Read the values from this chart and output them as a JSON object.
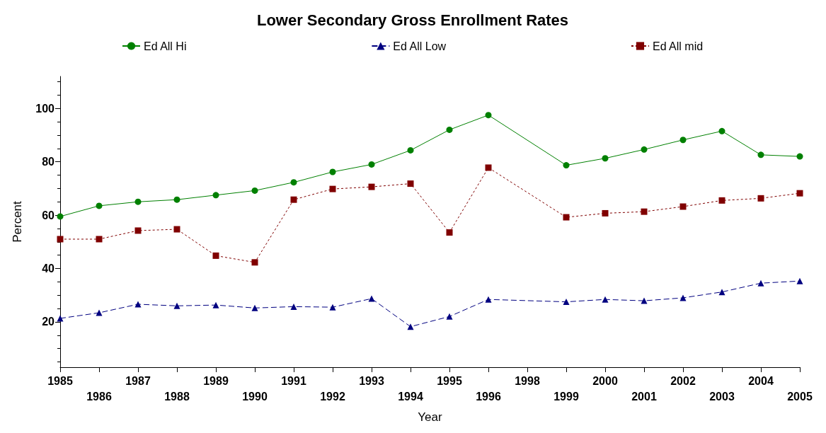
{
  "chart_data": {
    "type": "line",
    "title": "Lower Secondary Gross Enrollment Rates",
    "xlabel": "Year",
    "ylabel": "Percent",
    "categories": [
      "1985",
      "1986",
      "1987",
      "1988",
      "1989",
      "1990",
      "1991",
      "1992",
      "1993",
      "1994",
      "1995",
      "1996",
      "1998",
      "1999",
      "2000",
      "2001",
      "2002",
      "2003",
      "2004",
      "2005"
    ],
    "series": [
      {
        "name": "Ed All Hi",
        "color": "#008000",
        "marker": "circle",
        "line_style": "solid",
        "values": [
          59.5,
          63.5,
          65,
          65.8,
          67.5,
          69.2,
          72.3,
          76.2,
          79,
          84.3,
          92,
          97.5,
          null,
          78.7,
          81.3,
          84.6,
          88.2,
          91.5,
          82.6,
          82
        ]
      },
      {
        "name": "Ed All Low",
        "color": "#000080",
        "marker": "triangle",
        "line_style": "dashed",
        "values": [
          21.3,
          23.4,
          26.6,
          26,
          26.3,
          25.2,
          25.7,
          25.5,
          28.7,
          18.2,
          22,
          28.4,
          null,
          27.5,
          28.4,
          27.9,
          29,
          31.2,
          34.5,
          35.3
        ]
      },
      {
        "name": "Ed All mid",
        "color": "#800000",
        "marker": "square",
        "line_style": "dotted",
        "values": [
          51,
          51,
          54.2,
          54.7,
          44.8,
          42.3,
          65.8,
          69.8,
          70.6,
          71.8,
          53.5,
          77.8,
          null,
          59.2,
          60.7,
          61.3,
          63.2,
          65.5,
          66.3,
          68.2
        ]
      }
    ],
    "ylim": [
      3,
      112
    ],
    "yticks": [
      20,
      40,
      60,
      80,
      100
    ],
    "grid": false,
    "legend": "top"
  }
}
